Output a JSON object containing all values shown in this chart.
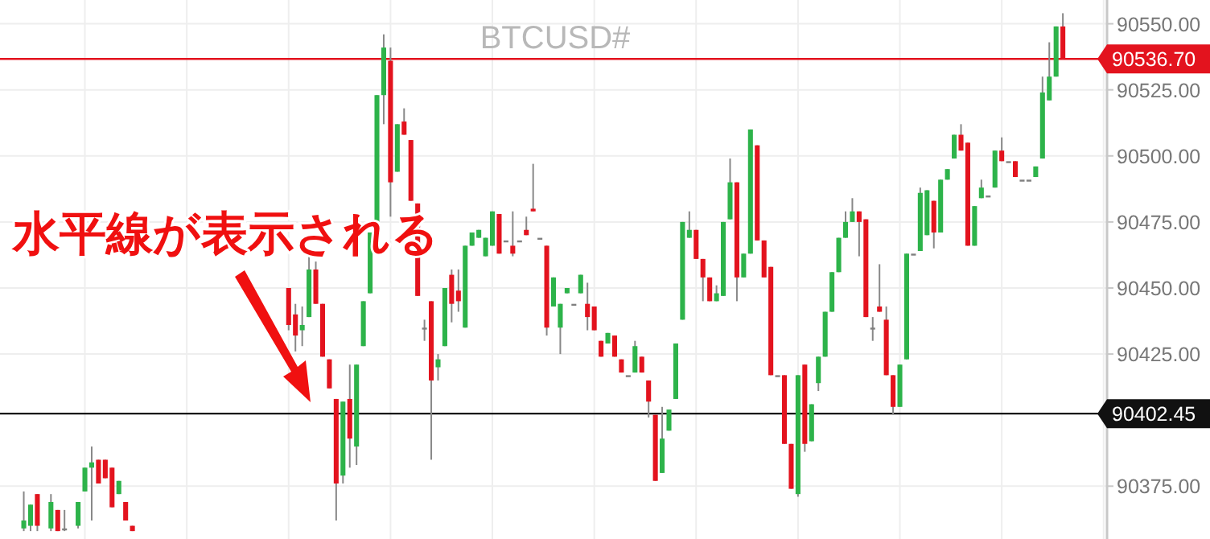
{
  "chart_data": {
    "type": "candlestick",
    "title": "BTCUSD#",
    "annotations": [
      "水平線が表示される"
    ],
    "categories": [
      null,
      null,
      null,
      null,
      null,
      null,
      null,
      null,
      null,
      null,
      null,
      null,
      null,
      null,
      null,
      null,
      null,
      null,
      null,
      null,
      null,
      null,
      null,
      null,
      null,
      null,
      null,
      null,
      null,
      null,
      null,
      null,
      null,
      null,
      null,
      null,
      null,
      null,
      null,
      null,
      null,
      null,
      null,
      null,
      null,
      null,
      null,
      null,
      null,
      null,
      null,
      null,
      null,
      null,
      null,
      null,
      null,
      null,
      null,
      null,
      null,
      null,
      null,
      null,
      null,
      null,
      null,
      null,
      null,
      null,
      null,
      null,
      null,
      null,
      null,
      null,
      null,
      null,
      null,
      null,
      null,
      null,
      null,
      null,
      null,
      null,
      null,
      null,
      null,
      null,
      null,
      null,
      null,
      null,
      null,
      null,
      null,
      null,
      null,
      null,
      null,
      null,
      null,
      null,
      null,
      null,
      null,
      null,
      null,
      null,
      null,
      null,
      null,
      null,
      null,
      null,
      null,
      null,
      null,
      null,
      null,
      null,
      null,
      null,
      null,
      null,
      null,
      null,
      null,
      null,
      null,
      null,
      null,
      null,
      null,
      null,
      null,
      null,
      null,
      null,
      null,
      null,
      null,
      null,
      null,
      null,
      null,
      null,
      null,
      null,
      null,
      null,
      null,
      null,
      null,
      null,
      null,
      null,
      null,
      null,
      null,
      null,
      null
    ],
    "ohlc": [
      null,
      null,
      null,
      [
        90359,
        90373,
        90358,
        90362
      ],
      [
        90360,
        90368,
        90358,
        90368
      ],
      [
        90372,
        90372,
        90358,
        90360
      ],
      null,
      [
        90359,
        90372,
        90358,
        90369
      ],
      [
        90366,
        90366,
        90358,
        90358
      ],
      [
        90359,
        90366,
        90358,
        90359
      ],
      null,
      [
        90360,
        90369,
        90359,
        90369
      ],
      [
        90373,
        90382,
        90373,
        90382
      ],
      [
        90382,
        90390,
        90362,
        90384
      ],
      [
        90385,
        90385,
        90376,
        90376
      ],
      [
        90385,
        90385,
        90378,
        90378
      ],
      [
        90382,
        90382,
        90367,
        90367
      ],
      [
        90372,
        90377,
        90372,
        90377
      ],
      [
        90369,
        90369,
        90362,
        90362
      ],
      [
        90360,
        90360,
        90358,
        90358
      ],
      null,
      null,
      null,
      null,
      null,
      null,
      null,
      null,
      null,
      null,
      null,
      null,
      null,
      null,
      null,
      null,
      null,
      null,
      null,
      null,
      null,
      null,
      [
        90450,
        90450,
        90434,
        90436
      ],
      [
        90440,
        90444,
        90426,
        90432
      ],
      [
        90434,
        90443,
        90428,
        90436
      ],
      [
        90439,
        90462,
        90439,
        90457
      ],
      [
        90457,
        90460,
        90444,
        90444
      ],
      [
        90444,
        90444,
        90424,
        90424
      ],
      [
        90423,
        90423,
        90412,
        90412
      ],
      [
        90408,
        90408,
        90362,
        90376
      ],
      [
        90379,
        90407,
        90376,
        90407
      ],
      [
        90408,
        90421,
        90382,
        90393
      ],
      [
        90390,
        90421,
        90383,
        90421
      ],
      [
        90428,
        90445,
        90428,
        90445
      ],
      [
        90448,
        90471,
        90448,
        90471
      ],
      [
        90471,
        90523,
        90471,
        90523
      ],
      [
        90523,
        90546,
        90512,
        90541
      ],
      [
        90536,
        90541,
        90477,
        90490
      ],
      [
        90494,
        90512,
        90494,
        90512
      ],
      [
        90513,
        90518,
        90508,
        90508
      ],
      [
        90506,
        90506,
        90483,
        90483
      ],
      [
        90482,
        90482,
        90447,
        90447
      ],
      [
        90435,
        90438,
        90430,
        90435
      ],
      [
        90445,
        90445,
        90385,
        90415
      ],
      [
        90420,
        90425,
        90415,
        90423
      ],
      [
        90428,
        90450,
        90428,
        90450
      ],
      [
        90455,
        90457,
        90437,
        90444
      ],
      [
        90449,
        90457,
        90441,
        90445
      ],
      [
        90435,
        90466,
        90435,
        90466
      ],
      [
        90466,
        90471,
        90466,
        90471
      ],
      [
        90469,
        90472,
        90469,
        90472
      ],
      [
        90462,
        90469,
        90462,
        90469
      ],
      [
        90466,
        90479,
        90466,
        90479
      ],
      [
        90478,
        90478,
        90463,
        90463
      ],
      [
        90468,
        90468,
        90468,
        90468
      ],
      [
        90466,
        90479,
        90462,
        90463
      ],
      [
        90468,
        90468,
        90468,
        90468
      ],
      [
        90472,
        90477,
        90470,
        90470
      ],
      [
        90480,
        90497,
        90479,
        90479
      ],
      [
        90469,
        90469,
        90469,
        90469
      ],
      [
        90466,
        90466,
        90432,
        90435
      ],
      [
        90443,
        90454,
        90443,
        90454
      ],
      [
        90435,
        90444,
        90425,
        90444
      ],
      [
        90448,
        90450,
        90448,
        90450
      ],
      [
        90444,
        90444,
        90444,
        90444
      ],
      [
        90448,
        90455,
        90448,
        90455
      ],
      [
        90444,
        90452,
        90434,
        90439
      ],
      [
        90443,
        90443,
        90434,
        90434
      ],
      [
        90430,
        90430,
        90424,
        90424
      ],
      [
        90429,
        90433,
        90429,
        90433
      ],
      [
        90432,
        90432,
        90424,
        90424
      ],
      [
        90423,
        90423,
        90418,
        90418
      ],
      [
        90417,
        90417,
        90417,
        90417
      ],
      [
        90418,
        90430,
        90418,
        90428
      ],
      [
        90424,
        90424,
        90418,
        90418
      ],
      [
        90415,
        90415,
        90401,
        90407
      ],
      [
        90402,
        90402,
        90377,
        90377
      ],
      [
        90380,
        90405,
        90380,
        90393
      ],
      [
        90396,
        90404,
        90396,
        90404
      ],
      [
        90408,
        90429,
        90408,
        90429
      ],
      [
        90438,
        90475,
        90438,
        90475
      ],
      [
        90469,
        90479,
        90469,
        90472
      ],
      [
        90472,
        90472,
        90461,
        90461
      ],
      [
        90461,
        90461,
        90445,
        90454
      ],
      [
        90454,
        90454,
        90445,
        90445
      ],
      [
        90445,
        90451,
        90445,
        90448
      ],
      [
        90447,
        90475,
        90447,
        90475
      ],
      [
        90476,
        90499,
        90476,
        90490
      ],
      [
        90490,
        90490,
        90445,
        90454
      ],
      [
        90454,
        90463,
        90454,
        90463
      ],
      [
        90463,
        90510,
        90463,
        90510
      ],
      [
        90504,
        90504,
        90468,
        90468
      ],
      [
        90468,
        90468,
        90454,
        90454
      ],
      [
        90458,
        90458,
        90417,
        90417
      ],
      [
        90417,
        90417,
        90417,
        90417
      ],
      [
        90417,
        90417,
        90391,
        90391
      ],
      [
        90391,
        90391,
        90374,
        90374
      ],
      [
        90372,
        90417,
        90371,
        90417
      ],
      [
        90421,
        90421,
        90388,
        90391
      ],
      [
        90392,
        90406,
        90392,
        90406
      ],
      [
        90414,
        90424,
        90411,
        90424
      ],
      [
        90424,
        90441,
        90424,
        90441
      ],
      [
        90441,
        90456,
        90441,
        90456
      ],
      [
        90456,
        90469,
        90456,
        90469
      ],
      [
        90469,
        90479,
        90469,
        90475
      ],
      [
        90475,
        90484,
        90475,
        90479
      ],
      [
        90479,
        90479,
        90462,
        90475
      ],
      [
        90476,
        90476,
        90439,
        90439
      ],
      [
        90435,
        90439,
        90430,
        90435
      ],
      [
        90443,
        90459,
        90441,
        90441
      ],
      [
        90438,
        90443,
        90417,
        90417
      ],
      [
        90417,
        90417,
        90402,
        90405
      ],
      [
        90405,
        90421,
        90405,
        90421
      ],
      [
        90423,
        90463,
        90423,
        90463
      ],
      [
        90463,
        90463,
        90463,
        90463
      ],
      [
        90464,
        90488,
        90464,
        90486
      ],
      [
        90470,
        90487,
        90470,
        90487
      ],
      [
        90483,
        90483,
        90465,
        90471
      ],
      [
        90471,
        90491,
        90471,
        90491
      ],
      [
        90491,
        90495,
        90491,
        90495
      ],
      [
        90499,
        90508,
        90499,
        90508
      ],
      [
        90508,
        90512,
        90502,
        90502
      ],
      [
        90505,
        90505,
        90466,
        90466
      ],
      [
        90466,
        90481,
        90466,
        90481
      ],
      [
        90484,
        90491,
        90484,
        90488
      ],
      [
        90485,
        90485,
        90485,
        90485
      ],
      [
        90488,
        90502,
        90488,
        90502
      ],
      [
        90502,
        90507,
        90498,
        90498
      ],
      [
        90498,
        90498,
        90498,
        90498
      ],
      [
        90498,
        90498,
        90492,
        90492
      ],
      [
        90491,
        90491,
        90491,
        90491
      ],
      [
        90491,
        90491,
        90491,
        90491
      ],
      [
        90492,
        90496,
        90492,
        90496
      ],
      [
        90499,
        90530,
        90499,
        90524
      ],
      [
        90521,
        90543,
        90521,
        90530
      ],
      [
        90530,
        90549,
        90530,
        90549
      ],
      [
        90549,
        90554,
        90536.7,
        90536.7
      ],
      null,
      null,
      null,
      null,
      null,
      null
    ],
    "ylim": [
      90355,
      90559
    ],
    "yticks": [
      {
        "value": 90375,
        "label": "90375.00"
      },
      {
        "value": 90425,
        "label": "90425.00"
      },
      {
        "value": 90450,
        "label": "90450.00"
      },
      {
        "value": 90475,
        "label": "90475.00"
      },
      {
        "value": 90500,
        "label": "90500.00"
      },
      {
        "value": 90525,
        "label": "90525.00"
      },
      {
        "value": 90550,
        "label": "90550.00"
      }
    ],
    "grid": true,
    "ref_lines": [
      {
        "axis": "y",
        "value": 90536.7,
        "label": "90536.70",
        "color": "#e3131e"
      },
      {
        "axis": "y",
        "value": 90402.45,
        "label": "90402.45",
        "color": "#111111"
      }
    ]
  }
}
